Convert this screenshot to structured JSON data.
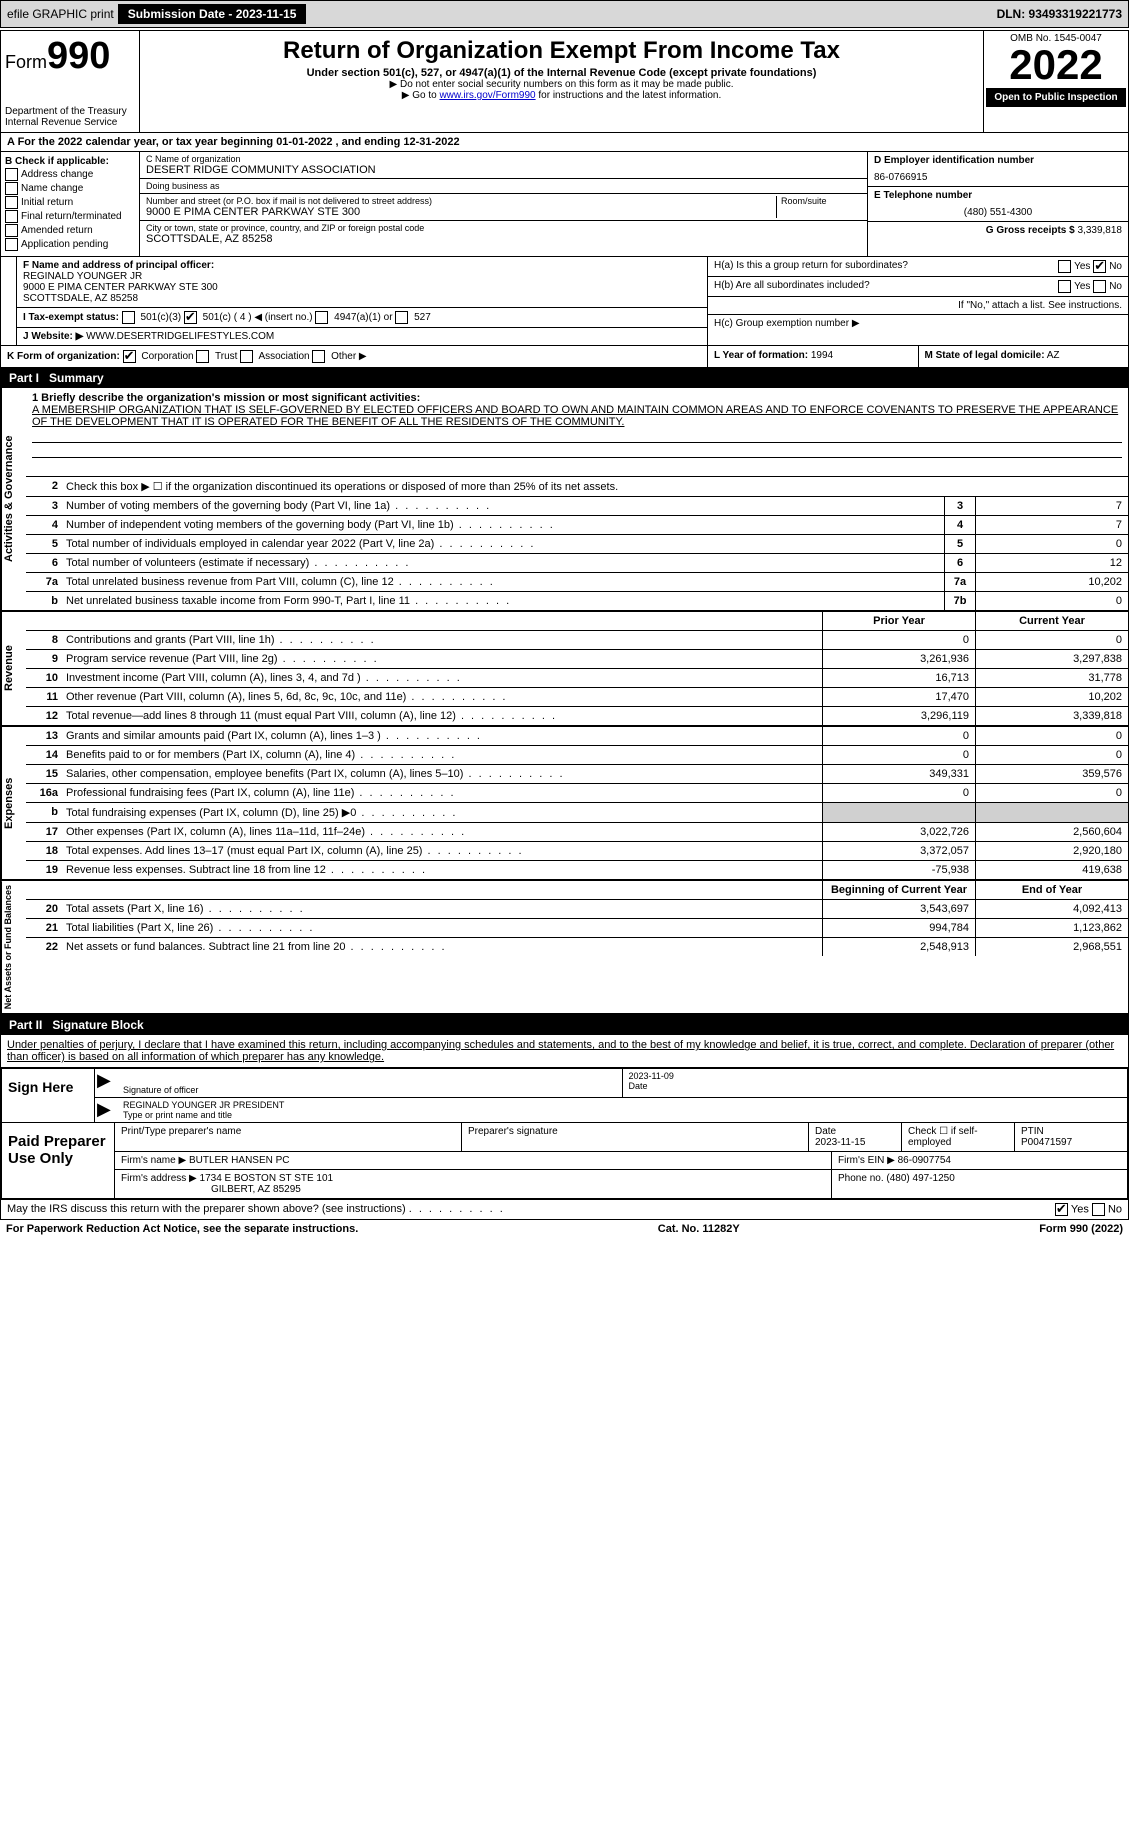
{
  "topbar": {
    "efile_label": "efile GRAPHIC print",
    "submission_label": "Submission Date - 2023-11-15",
    "dln_label": "DLN: 93493319221773"
  },
  "header": {
    "form_prefix": "Form",
    "form_number": "990",
    "dept": "Department of the Treasury",
    "irs": "Internal Revenue Service",
    "title": "Return of Organization Exempt From Income Tax",
    "subtitle": "Under section 501(c), 527, or 4947(a)(1) of the Internal Revenue Code (except private foundations)",
    "note1": "▶ Do not enter social security numbers on this form as it may be made public.",
    "note2_prefix": "▶ Go to ",
    "note2_link": "www.irs.gov/Form990",
    "note2_suffix": " for instructions and the latest information.",
    "omb": "OMB No. 1545-0047",
    "year": "2022",
    "open_public": "Open to Public Inspection"
  },
  "row_a": "A For the 2022 calendar year, or tax year beginning 01-01-2022    , and ending 12-31-2022",
  "section_b": {
    "label": "B Check if applicable:",
    "opts": [
      "Address change",
      "Name change",
      "Initial return",
      "Final return/terminated",
      "Amended return",
      "Application pending"
    ]
  },
  "section_c": {
    "name_label": "C Name of organization",
    "name": "DESERT RIDGE COMMUNITY ASSOCIATION",
    "dba_label": "Doing business as",
    "dba": "",
    "addr_label": "Number and street (or P.O. box if mail is not delivered to street address)",
    "room_label": "Room/suite",
    "addr": "9000 E PIMA CENTER PARKWAY STE 300",
    "city_label": "City or town, state or province, country, and ZIP or foreign postal code",
    "city": "SCOTTSDALE, AZ  85258"
  },
  "section_d": {
    "ein_label": "D Employer identification number",
    "ein": "86-0766915",
    "phone_label": "E Telephone number",
    "phone": "(480) 551-4300",
    "gross_label": "G Gross receipts $",
    "gross": "3,339,818"
  },
  "section_f": {
    "label": "F  Name and address of principal officer:",
    "name": "REGINALD YOUNGER JR",
    "addr1": "9000 E PIMA CENTER PARKWAY STE 300",
    "addr2": "SCOTTSDALE, AZ  85258"
  },
  "section_h": {
    "ha_label": "H(a)  Is this a group return for subordinates?",
    "ha_yes": "Yes",
    "ha_no": "No",
    "hb_label": "H(b)  Are all subordinates included?",
    "hb_note": "If \"No,\" attach a list. See instructions.",
    "hc_label": "H(c)  Group exemption number ▶"
  },
  "section_i": {
    "label": "I  Tax-exempt status:",
    "opt1": "501(c)(3)",
    "opt2": "501(c) ( 4 ) ◀ (insert no.)",
    "opt3": "4947(a)(1) or",
    "opt4": "527"
  },
  "section_j": {
    "label": "J  Website: ▶",
    "value": "WWW.DESERTRIDGELIFESTYLES.COM"
  },
  "section_k": {
    "label": "K Form of organization:",
    "opts": [
      "Corporation",
      "Trust",
      "Association",
      "Other ▶"
    ],
    "l_label": "L Year of formation:",
    "l_val": "1994",
    "m_label": "M State of legal domicile:",
    "m_val": "AZ"
  },
  "part1": {
    "header": "Part I",
    "title": "Summary"
  },
  "governance": {
    "vlabel": "Activities & Governance",
    "line1_label": "1  Briefly describe the organization's mission or most significant activities:",
    "mission": "A MEMBERSHIP ORGANIZATION THAT IS SELF-GOVERNED BY ELECTED OFFICERS AND BOARD TO OWN AND MAINTAIN COMMON AREAS AND TO ENFORCE COVENANTS TO PRESERVE THE APPEARANCE OF THE DEVELOPMENT THAT IT IS OPERATED FOR THE BENEFIT OF ALL THE RESIDENTS OF THE COMMUNITY.",
    "line2": "Check this box ▶ ☐  if the organization discontinued its operations or disposed of more than 25% of its net assets.",
    "lines": [
      {
        "n": "3",
        "d": "Number of voting members of the governing body (Part VI, line 1a)",
        "b": "3",
        "v": "7"
      },
      {
        "n": "4",
        "d": "Number of independent voting members of the governing body (Part VI, line 1b)",
        "b": "4",
        "v": "7"
      },
      {
        "n": "5",
        "d": "Total number of individuals employed in calendar year 2022 (Part V, line 2a)",
        "b": "5",
        "v": "0"
      },
      {
        "n": "6",
        "d": "Total number of volunteers (estimate if necessary)",
        "b": "6",
        "v": "12"
      },
      {
        "n": "7a",
        "d": "Total unrelated business revenue from Part VIII, column (C), line 12",
        "b": "7a",
        "v": "10,202"
      },
      {
        "n": "b",
        "d": "Net unrelated business taxable income from Form 990-T, Part I, line 11",
        "b": "7b",
        "v": "0"
      }
    ]
  },
  "revenue": {
    "vlabel": "Revenue",
    "hdr_prior": "Prior Year",
    "hdr_current": "Current Year",
    "lines": [
      {
        "n": "8",
        "d": "Contributions and grants (Part VIII, line 1h)",
        "p": "0",
        "c": "0"
      },
      {
        "n": "9",
        "d": "Program service revenue (Part VIII, line 2g)",
        "p": "3,261,936",
        "c": "3,297,838"
      },
      {
        "n": "10",
        "d": "Investment income (Part VIII, column (A), lines 3, 4, and 7d )",
        "p": "16,713",
        "c": "31,778"
      },
      {
        "n": "11",
        "d": "Other revenue (Part VIII, column (A), lines 5, 6d, 8c, 9c, 10c, and 11e)",
        "p": "17,470",
        "c": "10,202"
      },
      {
        "n": "12",
        "d": "Total revenue—add lines 8 through 11 (must equal Part VIII, column (A), line 12)",
        "p": "3,296,119",
        "c": "3,339,818"
      }
    ]
  },
  "expenses": {
    "vlabel": "Expenses",
    "lines": [
      {
        "n": "13",
        "d": "Grants and similar amounts paid (Part IX, column (A), lines 1–3 )",
        "p": "0",
        "c": "0"
      },
      {
        "n": "14",
        "d": "Benefits paid to or for members (Part IX, column (A), line 4)",
        "p": "0",
        "c": "0"
      },
      {
        "n": "15",
        "d": "Salaries, other compensation, employee benefits (Part IX, column (A), lines 5–10)",
        "p": "349,331",
        "c": "359,576"
      },
      {
        "n": "16a",
        "d": "Professional fundraising fees (Part IX, column (A), line 11e)",
        "p": "0",
        "c": "0"
      },
      {
        "n": "b",
        "d": "Total fundraising expenses (Part IX, column (D), line 25) ▶0",
        "p": "",
        "c": "",
        "shaded": true
      },
      {
        "n": "17",
        "d": "Other expenses (Part IX, column (A), lines 11a–11d, 11f–24e)",
        "p": "3,022,726",
        "c": "2,560,604"
      },
      {
        "n": "18",
        "d": "Total expenses. Add lines 13–17 (must equal Part IX, column (A), line 25)",
        "p": "3,372,057",
        "c": "2,920,180"
      },
      {
        "n": "19",
        "d": "Revenue less expenses. Subtract line 18 from line 12",
        "p": "-75,938",
        "c": "419,638"
      }
    ]
  },
  "netassets": {
    "vlabel": "Net Assets or Fund Balances",
    "hdr_begin": "Beginning of Current Year",
    "hdr_end": "End of Year",
    "lines": [
      {
        "n": "20",
        "d": "Total assets (Part X, line 16)",
        "p": "3,543,697",
        "c": "4,092,413"
      },
      {
        "n": "21",
        "d": "Total liabilities (Part X, line 26)",
        "p": "994,784",
        "c": "1,123,862"
      },
      {
        "n": "22",
        "d": "Net assets or fund balances. Subtract line 21 from line 20",
        "p": "2,548,913",
        "c": "2,968,551"
      }
    ]
  },
  "part2": {
    "header": "Part II",
    "title": "Signature Block",
    "penalties": "Under penalties of perjury, I declare that I have examined this return, including accompanying schedules and statements, and to the best of my knowledge and belief, it is true, correct, and complete. Declaration of preparer (other than officer) is based on all information of which preparer has any knowledge."
  },
  "sign": {
    "label": "Sign Here",
    "sig_officer_lbl": "Signature of officer",
    "date_lbl": "Date",
    "date_val": "2023-11-09",
    "name": "REGINALD YOUNGER JR  PRESIDENT",
    "name_lbl": "Type or print name and title"
  },
  "preparer": {
    "label": "Paid Preparer Use Only",
    "name_lbl": "Print/Type preparer's name",
    "sig_lbl": "Preparer's signature",
    "date_lbl": "Date",
    "date_val": "2023-11-15",
    "check_lbl": "Check ☐ if self-employed",
    "ptin_lbl": "PTIN",
    "ptin": "P00471597",
    "firm_name_lbl": "Firm's name    ▶",
    "firm_name": "BUTLER HANSEN PC",
    "firm_ein_lbl": "Firm's EIN ▶",
    "firm_ein": "86-0907754",
    "firm_addr_lbl": "Firm's address ▶",
    "firm_addr1": "1734 E BOSTON ST STE 101",
    "firm_addr2": "GILBERT, AZ  85295",
    "phone_lbl": "Phone no.",
    "phone": "(480) 497-1250"
  },
  "footer": {
    "discuss": "May the IRS discuss this return with the preparer shown above? (see instructions)",
    "yes": "Yes",
    "no": "No",
    "pra": "For Paperwork Reduction Act Notice, see the separate instructions.",
    "cat": "Cat. No. 11282Y",
    "form": "Form 990 (2022)"
  }
}
